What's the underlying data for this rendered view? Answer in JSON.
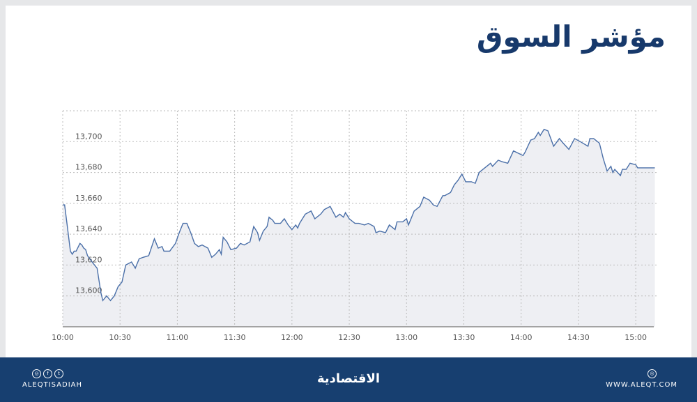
{
  "header": {
    "title": "مؤشر السوق"
  },
  "footer": {
    "handle": "ALEQTISADIAH",
    "logo_text": "الاقتصادية",
    "website": "WWW.ALEQT.COM",
    "social_icons": [
      "instagram-icon",
      "facebook-icon",
      "twitter-icon"
    ],
    "site_icon": "web-icon",
    "background": "#173f70"
  },
  "chart_data": {
    "type": "area",
    "title": "",
    "xlabel": "",
    "ylabel": "",
    "xlim": [
      "10:00",
      "15:12"
    ],
    "ylim": [
      13580,
      13720
    ],
    "x_ticks": [
      "10:00",
      "10:30",
      "11:00",
      "11:30",
      "12:00",
      "12:30",
      "13:00",
      "13:30",
      "14:00",
      "14:30",
      "15:00"
    ],
    "y_ticks": [
      "13,600",
      "13,620",
      "13,640",
      "13,660",
      "13,680",
      "13,700"
    ],
    "y_tick_values": [
      13600,
      13620,
      13640,
      13660,
      13680,
      13700
    ],
    "grid": true,
    "line_color": "#4a6fa8",
    "fill_color": "#eeeff3",
    "points": [
      [
        "10:00",
        13659
      ],
      [
        "10:01",
        13659
      ],
      [
        "10:02",
        13649
      ],
      [
        "10:04",
        13629
      ],
      [
        "10:05",
        13627
      ],
      [
        "10:06",
        13629
      ],
      [
        "10:07",
        13629
      ],
      [
        "10:09",
        13634
      ],
      [
        "10:10",
        13633
      ],
      [
        "10:11",
        13631
      ],
      [
        "10:12",
        13630
      ],
      [
        "10:13",
        13626
      ],
      [
        "10:16",
        13621
      ],
      [
        "10:18",
        13618
      ],
      [
        "10:20",
        13602
      ],
      [
        "10:21",
        13597
      ],
      [
        "10:23",
        13600
      ],
      [
        "10:25",
        13597
      ],
      [
        "10:27",
        13600
      ],
      [
        "10:29",
        13606
      ],
      [
        "10:31",
        13609
      ],
      [
        "10:33",
        13620
      ],
      [
        "10:36",
        13622
      ],
      [
        "10:38",
        13618
      ],
      [
        "10:40",
        13624
      ],
      [
        "10:42",
        13625
      ],
      [
        "10:45",
        13626
      ],
      [
        "10:48",
        13637
      ],
      [
        "10:50",
        13631
      ],
      [
        "10:52",
        13632
      ],
      [
        "10:53",
        13629
      ],
      [
        "10:56",
        13629
      ],
      [
        "10:59",
        13634
      ],
      [
        "11:01",
        13641
      ],
      [
        "11:03",
        13647
      ],
      [
        "11:05",
        13647
      ],
      [
        "11:07",
        13641
      ],
      [
        "11:09",
        13634
      ],
      [
        "11:11",
        13632
      ],
      [
        "11:13",
        13633
      ],
      [
        "11:16",
        13631
      ],
      [
        "11:18",
        13625
      ],
      [
        "11:20",
        13627
      ],
      [
        "11:22",
        13630
      ],
      [
        "11:23",
        13627
      ],
      [
        "11:24",
        13638
      ],
      [
        "11:26",
        13635
      ],
      [
        "11:28",
        13630
      ],
      [
        "11:31",
        13631
      ],
      [
        "11:33",
        13634
      ],
      [
        "11:35",
        13633
      ],
      [
        "11:38",
        13635
      ],
      [
        "11:40",
        13645
      ],
      [
        "11:42",
        13641
      ],
      [
        "11:43",
        13636
      ],
      [
        "11:45",
        13642
      ],
      [
        "11:47",
        13645
      ],
      [
        "11:48",
        13651
      ],
      [
        "11:50",
        13649
      ],
      [
        "11:51",
        13647
      ],
      [
        "11:54",
        13647
      ],
      [
        "11:56",
        13650
      ],
      [
        "11:58",
        13646
      ],
      [
        "12:00",
        13643
      ],
      [
        "12:02",
        13646
      ],
      [
        "12:03",
        13644
      ],
      [
        "12:04",
        13647
      ],
      [
        "12:07",
        13653
      ],
      [
        "12:10",
        13655
      ],
      [
        "12:12",
        13650
      ],
      [
        "12:15",
        13653
      ],
      [
        "12:17",
        13656
      ],
      [
        "12:20",
        13658
      ],
      [
        "12:23",
        13651
      ],
      [
        "12:25",
        13653
      ],
      [
        "12:27",
        13651
      ],
      [
        "12:28",
        13654
      ],
      [
        "12:30",
        13650
      ],
      [
        "12:33",
        13647
      ],
      [
        "12:35",
        13647
      ],
      [
        "12:38",
        13646
      ],
      [
        "12:40",
        13647
      ],
      [
        "12:43",
        13645
      ],
      [
        "12:44",
        13641
      ],
      [
        "12:46",
        13642
      ],
      [
        "12:49",
        13641
      ],
      [
        "12:51",
        13646
      ],
      [
        "12:52",
        13645
      ],
      [
        "12:54",
        13643
      ],
      [
        "12:55",
        13648
      ],
      [
        "12:58",
        13648
      ],
      [
        "13:00",
        13650
      ],
      [
        "13:01",
        13646
      ],
      [
        "13:02",
        13649
      ],
      [
        "13:04",
        13655
      ],
      [
        "13:07",
        13658
      ],
      [
        "13:09",
        13664
      ],
      [
        "13:12",
        13662
      ],
      [
        "13:14",
        13659
      ],
      [
        "13:16",
        13658
      ],
      [
        "13:19",
        13665
      ],
      [
        "13:20",
        13665
      ],
      [
        "13:23",
        13667
      ],
      [
        "13:25",
        13672
      ],
      [
        "13:27",
        13675
      ],
      [
        "13:29",
        13679
      ],
      [
        "13:31",
        13674
      ],
      [
        "13:34",
        13674
      ],
      [
        "13:36",
        13673
      ],
      [
        "13:38",
        13680
      ],
      [
        "13:40",
        13682
      ],
      [
        "13:44",
        13686
      ],
      [
        "13:45",
        13684
      ],
      [
        "13:48",
        13688
      ],
      [
        "13:50",
        13687
      ],
      [
        "13:53",
        13686
      ],
      [
        "13:56",
        13694
      ],
      [
        "14:01",
        13691
      ],
      [
        "14:02",
        13693
      ],
      [
        "14:05",
        13701
      ],
      [
        "14:07",
        13702
      ],
      [
        "14:09",
        13706
      ],
      [
        "14:10",
        13704
      ],
      [
        "14:12",
        13708
      ],
      [
        "14:14",
        13707
      ],
      [
        "14:17",
        13697
      ],
      [
        "14:20",
        13702
      ],
      [
        "14:22",
        13699
      ],
      [
        "14:25",
        13695
      ],
      [
        "14:28",
        13702
      ],
      [
        "14:31",
        13700
      ],
      [
        "14:35",
        13697
      ],
      [
        "14:36",
        13702
      ],
      [
        "14:38",
        13702
      ],
      [
        "14:41",
        13699
      ],
      [
        "14:43",
        13689
      ],
      [
        "14:45",
        13681
      ],
      [
        "14:47",
        13684
      ],
      [
        "14:48",
        13680
      ],
      [
        "14:49",
        13682
      ],
      [
        "14:52",
        13678
      ],
      [
        "14:53",
        13682
      ],
      [
        "14:55",
        13682
      ],
      [
        "14:57",
        13686
      ],
      [
        "15:00",
        13685
      ],
      [
        "15:01",
        13683
      ],
      [
        "15:10",
        13683
      ]
    ]
  }
}
